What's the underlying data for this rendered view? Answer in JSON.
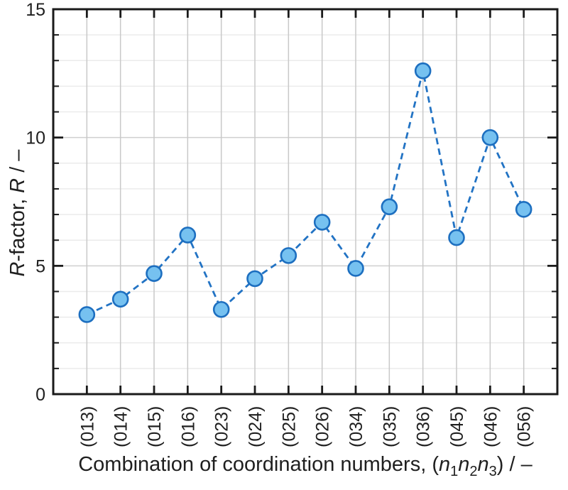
{
  "chart_data": {
    "type": "line",
    "categories": [
      "(013)",
      "(014)",
      "(015)",
      "(016)",
      "(023)",
      "(024)",
      "(025)",
      "(026)",
      "(034)",
      "(035)",
      "(036)",
      "(045)",
      "(046)",
      "(056)"
    ],
    "values": [
      3.1,
      3.7,
      4.7,
      6.2,
      3.3,
      4.5,
      5.4,
      6.7,
      4.9,
      7.3,
      12.6,
      6.1,
      10.0,
      7.2
    ],
    "title": "",
    "xlabel": "Combination of coordination numbers, (n₁n₂n₃) / –",
    "ylabel": "R-factor, R / –",
    "ylim": [
      0,
      15
    ],
    "y_major_step": 5,
    "y_minor_step": 1,
    "y_tick_labels": [
      "0",
      "5",
      "10",
      "15"
    ],
    "x_title_parts": {
      "prefix": "Combination of coordination numbers, (",
      "n1": "n",
      "s1": "1",
      "n2": "n",
      "s2": "2",
      "n3": "n",
      "s3": "3",
      "suffix": ") / –"
    },
    "y_title_parts": {
      "r1": "R",
      "mid": "-factor, ",
      "r2": "R",
      "suffix": " / –"
    },
    "line_style": "dashed",
    "marker": "circle",
    "grid": true,
    "legend": null
  },
  "style": {
    "line_color": "#2273c4",
    "marker_fill": "#76c1f0",
    "marker_stroke": "#1d6fc0",
    "axis_color": "#1a1a1a",
    "grid_minor_color": "#ebebeb",
    "grid_major_color": "#cfcfcf",
    "grid_vertical_color": "#c9c9c9",
    "tick_color": "#1a1a1a",
    "text_color": "#1f1f1f",
    "background": "#ffffff"
  }
}
